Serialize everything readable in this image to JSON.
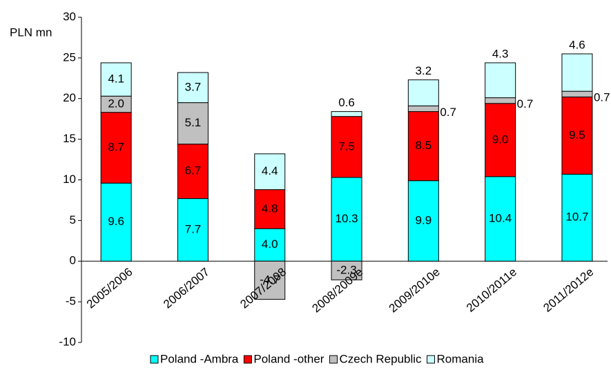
{
  "chart_data": {
    "type": "stacked-bar",
    "y_label": "PLN mn",
    "categories": [
      "2005/2006",
      "2006/2007",
      "2007/2008",
      "2008/2009e",
      "2009/2010e",
      "2010/2011e",
      "2011/2012e"
    ],
    "series": [
      {
        "name": "Poland -Ambra",
        "color": "#00ffff",
        "values": [
          9.6,
          7.7,
          4.0,
          10.3,
          9.9,
          10.4,
          10.7
        ],
        "value_labels": [
          "9.6",
          "7.7",
          "4.0",
          "10.3",
          "9.9",
          "10.4",
          "10.7"
        ]
      },
      {
        "name": "Poland -other",
        "color": "#ff0000",
        "values": [
          8.7,
          6.7,
          4.8,
          7.5,
          8.5,
          9.0,
          9.5
        ],
        "value_labels": [
          "8.7",
          "6.7",
          "4.8",
          "7.5",
          "8.5",
          "9.0",
          "9.5"
        ]
      },
      {
        "name": "Czech Republic",
        "color": "#c0c0c0",
        "values": [
          2.0,
          5.1,
          -4.7,
          -2.3,
          0.7,
          0.7,
          0.7
        ],
        "value_labels": [
          "2.0",
          "5.1",
          "-4.7",
          "-2.3",
          "0.7",
          "0.7",
          "0.7"
        ]
      },
      {
        "name": "Romania",
        "color": "#ccffff",
        "values": [
          4.1,
          3.7,
          4.4,
          0.6,
          3.2,
          4.3,
          4.6
        ],
        "value_labels": [
          "4.1",
          "3.7",
          "4.4",
          "0.6",
          "3.2",
          "4.3",
          "4.6"
        ]
      }
    ],
    "ylim": [
      -10,
      30
    ],
    "yticks": [
      -10,
      -5,
      0,
      5,
      10,
      15,
      20,
      25,
      30
    ],
    "legend": "bottom"
  }
}
